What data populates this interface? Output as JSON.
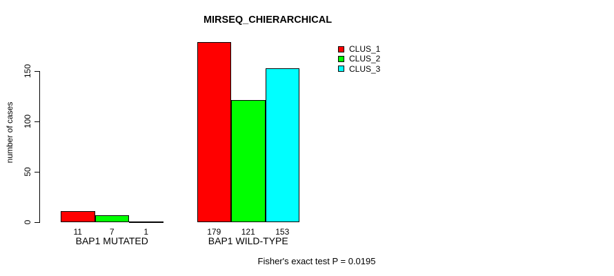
{
  "chart_data": {
    "type": "bar",
    "title": "MIRSEQ_CHIERARCHICAL",
    "ylabel": "number of cases",
    "xlabel": "",
    "categories": [
      "BAP1 MUTATED",
      "BAP1 WILD-TYPE"
    ],
    "series": [
      {
        "name": "CLUS_1",
        "color": "#ff0000",
        "values": [
          11,
          179
        ]
      },
      {
        "name": "CLUS_2",
        "color": "#00ff00",
        "values": [
          7,
          121
        ]
      },
      {
        "name": "CLUS_3",
        "color": "#00ffff",
        "values": [
          1,
          153
        ]
      }
    ],
    "bar_value_labels": [
      [
        "11",
        "7",
        "1"
      ],
      [
        "179",
        "121",
        "153"
      ]
    ],
    "yticks": [
      0,
      50,
      100,
      150
    ],
    "ylim": [
      0,
      179
    ],
    "grid": false,
    "legend_position": "top-right",
    "annotation": "Fisher's exact test P = 0.0195"
  },
  "colors": {
    "background": "#ffffff",
    "axis": "#000000",
    "bar_border": "#000000"
  }
}
